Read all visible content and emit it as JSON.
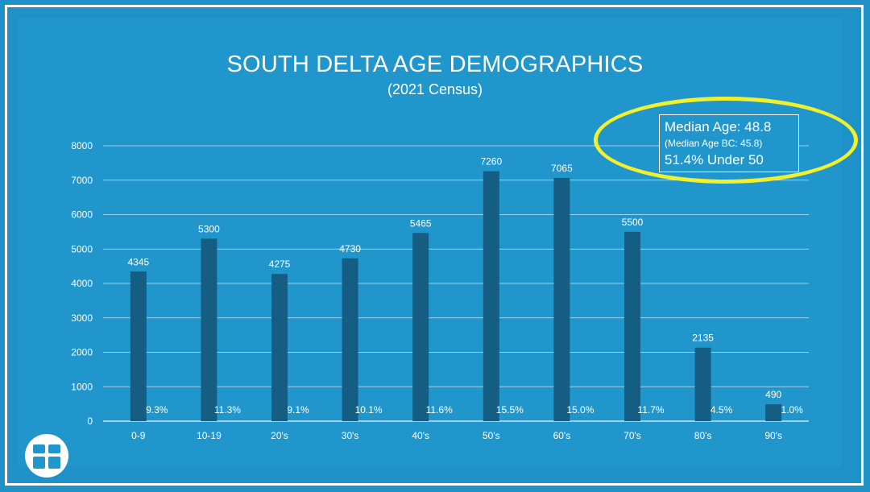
{
  "chart_data": {
    "type": "bar",
    "title": "SOUTH DELTA AGE DEMOGRAPHICS",
    "subtitle": "(2021 Census)",
    "categories": [
      "0-9",
      "10-19",
      "20's",
      "30's",
      "40's",
      "50's",
      "60's",
      "70's",
      "80's",
      "90's"
    ],
    "values": [
      4345,
      5300,
      4275,
      4730,
      5465,
      7260,
      7065,
      5500,
      2135,
      490
    ],
    "percent_labels": [
      "9.3%",
      "11.3%",
      "9.1%",
      "10.1%",
      "11.6%",
      "15.5%",
      "15.0%",
      "11.7%",
      "4.5%",
      "1.0%"
    ],
    "y_ticks": [
      0,
      1000,
      2000,
      3000,
      4000,
      5000,
      6000,
      7000,
      8000
    ],
    "ylim": [
      0,
      8000
    ],
    "xlabel": "",
    "ylabel": "",
    "grid": true,
    "legend": "none"
  },
  "info_box": {
    "median_age": "Median Age: 48.8",
    "median_age_bc": "(Median Age BC: 45.8)",
    "under_50": "51.4% Under 50"
  },
  "colors": {
    "background": "#2196cc",
    "bar": "#155d82",
    "text": "#ffffff",
    "highlight": "#f2ef2e"
  },
  "icons": {
    "logo": "white-circle-cross-logo"
  }
}
